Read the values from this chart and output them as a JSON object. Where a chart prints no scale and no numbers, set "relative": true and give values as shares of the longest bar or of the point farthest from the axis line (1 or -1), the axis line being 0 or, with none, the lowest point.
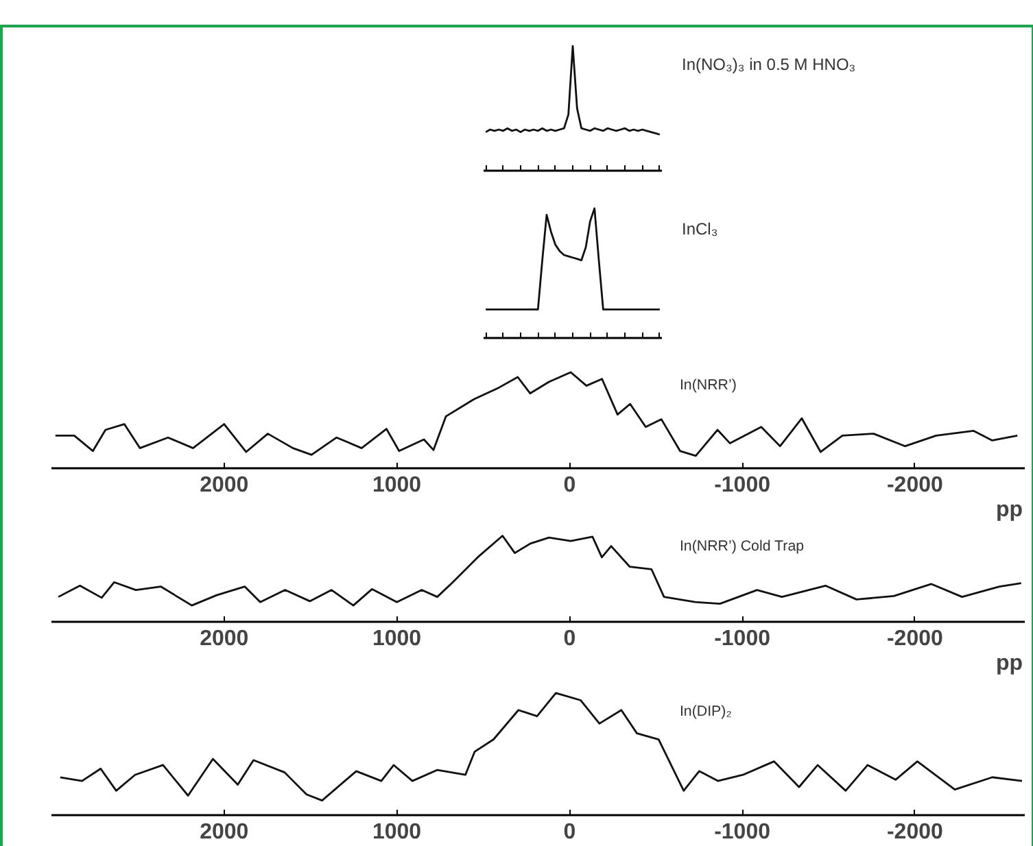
{
  "chart_data": [
    {
      "type": "line",
      "relative": true,
      "tick_labels": false,
      "categories": [
        null,
        null,
        null,
        null,
        null,
        null,
        null,
        null,
        null,
        null,
        null,
        null,
        null,
        null,
        null,
        null,
        null,
        null,
        null,
        null,
        null,
        null,
        null,
        null,
        null,
        null,
        null,
        null,
        null,
        null,
        null,
        null,
        null,
        null,
        null,
        null,
        null,
        null,
        null,
        null,
        null
      ],
      "series": [
        {
          "name": "In(NO₃)₃ in 0.5 M HNO₃",
          "color": "#111111",
          "values": [
            0.31,
            0.33,
            0.32,
            0.33,
            0.32,
            0.34,
            0.32,
            0.33,
            0.31,
            0.33,
            0.32,
            0.33,
            0.32,
            0.34,
            0.32,
            0.33,
            0.32,
            0.33,
            0.34,
            0.45,
            1.0,
            0.5,
            0.34,
            0.33,
            0.32,
            0.34,
            0.33,
            0.32,
            0.34,
            0.33,
            0.32,
            0.33,
            0.34,
            0.32,
            0.33,
            0.32,
            0.33,
            0.32,
            0.31,
            0.3,
            0.29
          ]
        }
      ]
    },
    {
      "type": "line",
      "relative": true,
      "tick_labels": false,
      "categories": [
        null,
        null,
        null,
        null,
        null,
        null,
        null,
        null,
        null,
        null,
        null,
        null,
        null,
        null,
        null,
        null,
        null,
        null,
        null,
        null,
        null,
        null,
        null,
        null,
        null,
        null,
        null,
        null,
        null,
        null,
        null,
        null,
        null,
        null,
        null,
        null,
        null,
        null,
        null,
        null,
        null
      ],
      "series": [
        {
          "name": "InCl₃",
          "color": "#111111",
          "values": [
            0.22,
            0.22,
            0.22,
            0.22,
            0.22,
            0.22,
            0.22,
            0.22,
            0.22,
            0.22,
            0.22,
            0.22,
            0.22,
            0.6,
            0.95,
            0.82,
            0.72,
            0.67,
            0.64,
            0.63,
            0.62,
            0.61,
            0.6,
            0.7,
            0.9,
            1.0,
            0.6,
            0.22,
            0.22,
            0.22,
            0.22,
            0.22,
            0.22,
            0.22,
            0.22,
            0.22,
            0.22,
            0.22,
            0.22,
            0.22,
            0.22
          ]
        }
      ]
    },
    {
      "type": "line",
      "relative": true,
      "xlim": [
        3000,
        -2640
      ],
      "xticks": [
        2000,
        1000,
        0,
        -1000,
        -2000
      ],
      "xlabel": "pp",
      "series": [
        {
          "name": "In(NRR’)",
          "color": "#111111",
          "x": [
            2977,
            2868,
            2760,
            2687,
            2578,
            2488,
            2325,
            2180,
            2000,
            1873,
            1747,
            1602,
            1494,
            1349,
            1204,
            1060,
            987,
            843,
            788,
            716,
            553,
            409,
            300,
            228,
            119,
            -7,
            -98,
            -188,
            -278,
            -351,
            -441,
            -532,
            -640,
            -731,
            -857,
            -929,
            -1110,
            -1219,
            -1345,
            -1454,
            -1580,
            -1761,
            -1942,
            -2123,
            -2340,
            -2448,
            -2593
          ],
          "values": [
            0.34,
            0.34,
            0.18,
            0.4,
            0.46,
            0.21,
            0.32,
            0.21,
            0.46,
            0.17,
            0.36,
            0.21,
            0.14,
            0.32,
            0.21,
            0.41,
            0.18,
            0.3,
            0.19,
            0.54,
            0.72,
            0.84,
            0.95,
            0.78,
            0.9,
            1.0,
            0.86,
            0.93,
            0.56,
            0.67,
            0.43,
            0.51,
            0.18,
            0.13,
            0.4,
            0.26,
            0.43,
            0.23,
            0.52,
            0.17,
            0.34,
            0.36,
            0.23,
            0.34,
            0.39,
            0.29,
            0.34
          ]
        }
      ]
    },
    {
      "type": "line",
      "relative": true,
      "xlim": [
        3000,
        -2640
      ],
      "xticks": [
        2000,
        1000,
        0,
        -1000,
        -2000
      ],
      "xlabel": "pp",
      "series": [
        {
          "name": "In(NRR’) Cold Trap",
          "color": "#111111",
          "x": [
            2960,
            2835,
            2709,
            2637,
            2511,
            2367,
            2187,
            2043,
            1881,
            1791,
            1647,
            1504,
            1378,
            1252,
            1144,
            1000,
            856,
            766,
            676,
            532,
            388,
            317,
            227,
            119,
            -7,
            -133,
            -187,
            -241,
            -349,
            -475,
            -547,
            -727,
            -871,
            -1086,
            -1230,
            -1482,
            -1662,
            -1878,
            -2094,
            -2273,
            -2489,
            -2615
          ],
          "values": [
            0.29,
            0.42,
            0.28,
            0.46,
            0.37,
            0.41,
            0.19,
            0.31,
            0.41,
            0.23,
            0.37,
            0.24,
            0.37,
            0.19,
            0.38,
            0.23,
            0.37,
            0.29,
            0.46,
            0.75,
            1.0,
            0.8,
            0.91,
            0.98,
            0.94,
            0.99,
            0.75,
            0.88,
            0.64,
            0.61,
            0.29,
            0.23,
            0.21,
            0.37,
            0.29,
            0.42,
            0.26,
            0.3,
            0.44,
            0.29,
            0.41,
            0.45
          ]
        }
      ]
    },
    {
      "type": "line",
      "relative": true,
      "xlim": [
        3000,
        -2640
      ],
      "xticks": [
        2000,
        1000,
        0,
        -1000,
        -2000
      ],
      "series": [
        {
          "name": "In(DIP)₂",
          "color": "#111111",
          "x": [
            2949,
            2823,
            2715,
            2625,
            2516,
            2354,
            2209,
            2065,
            1921,
            1830,
            1650,
            1523,
            1433,
            1235,
            1090,
            1018,
            910,
            765,
            603,
            549,
            440,
            296,
            188,
            79,
            -65,
            -173,
            -300,
            -390,
            -516,
            -661,
            -751,
            -859,
            -1004,
            -1184,
            -1329,
            -1437,
            -1599,
            -1726,
            -1888,
            -2014,
            -2231,
            -2448,
            -2620
          ],
          "values": [
            0.31,
            0.28,
            0.38,
            0.2,
            0.33,
            0.41,
            0.16,
            0.46,
            0.25,
            0.45,
            0.35,
            0.17,
            0.12,
            0.36,
            0.28,
            0.41,
            0.28,
            0.37,
            0.33,
            0.52,
            0.62,
            0.86,
            0.81,
            1.0,
            0.94,
            0.75,
            0.86,
            0.67,
            0.62,
            0.2,
            0.36,
            0.28,
            0.33,
            0.44,
            0.23,
            0.41,
            0.2,
            0.41,
            0.29,
            0.44,
            0.21,
            0.31,
            0.28
          ]
        }
      ]
    }
  ]
}
